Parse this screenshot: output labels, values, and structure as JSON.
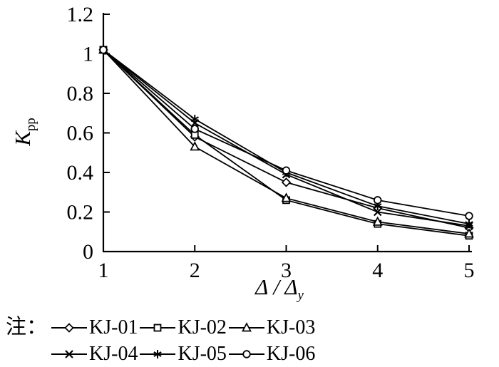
{
  "figure": {
    "background": "#ffffff",
    "line_color": "#000000"
  },
  "chart_data": {
    "type": "line",
    "title": "",
    "x": [
      1,
      2,
      3,
      4,
      5
    ],
    "xlabel_main": "Δ / Δ",
    "xlabel_sub": "y",
    "ylabel_main": "K",
    "ylabel_sub": "pp",
    "xlim": [
      1,
      5
    ],
    "ylim": [
      0,
      1.2
    ],
    "xticks": [
      1,
      2,
      3,
      4,
      5
    ],
    "xtick_labels": [
      "1",
      "2",
      "3",
      "4",
      "5"
    ],
    "yticks": [
      0,
      0.2,
      0.4,
      0.6,
      0.8,
      1.0,
      1.2
    ],
    "ytick_labels": [
      "0",
      "0.2",
      "0.4",
      "0.6",
      "0.8",
      "1",
      "1.2"
    ],
    "grid": false,
    "legend_position": "bottom",
    "legend_note": "注：",
    "series": [
      {
        "name": "KJ-01",
        "marker": "diamond",
        "values": [
          1.02,
          0.58,
          0.35,
          0.22,
          0.12
        ]
      },
      {
        "name": "KJ-02",
        "marker": "square",
        "values": [
          1.02,
          0.59,
          0.26,
          0.14,
          0.08
        ]
      },
      {
        "name": "KJ-03",
        "marker": "triangle",
        "values": [
          1.02,
          0.53,
          0.27,
          0.15,
          0.09
        ]
      },
      {
        "name": "KJ-04",
        "marker": "x",
        "values": [
          1.02,
          0.65,
          0.39,
          0.2,
          0.13
        ]
      },
      {
        "name": "KJ-05",
        "marker": "asterisk",
        "values": [
          1.02,
          0.67,
          0.4,
          0.23,
          0.14
        ]
      },
      {
        "name": "KJ-06",
        "marker": "circle",
        "values": [
          1.02,
          0.62,
          0.41,
          0.26,
          0.18
        ]
      }
    ]
  }
}
